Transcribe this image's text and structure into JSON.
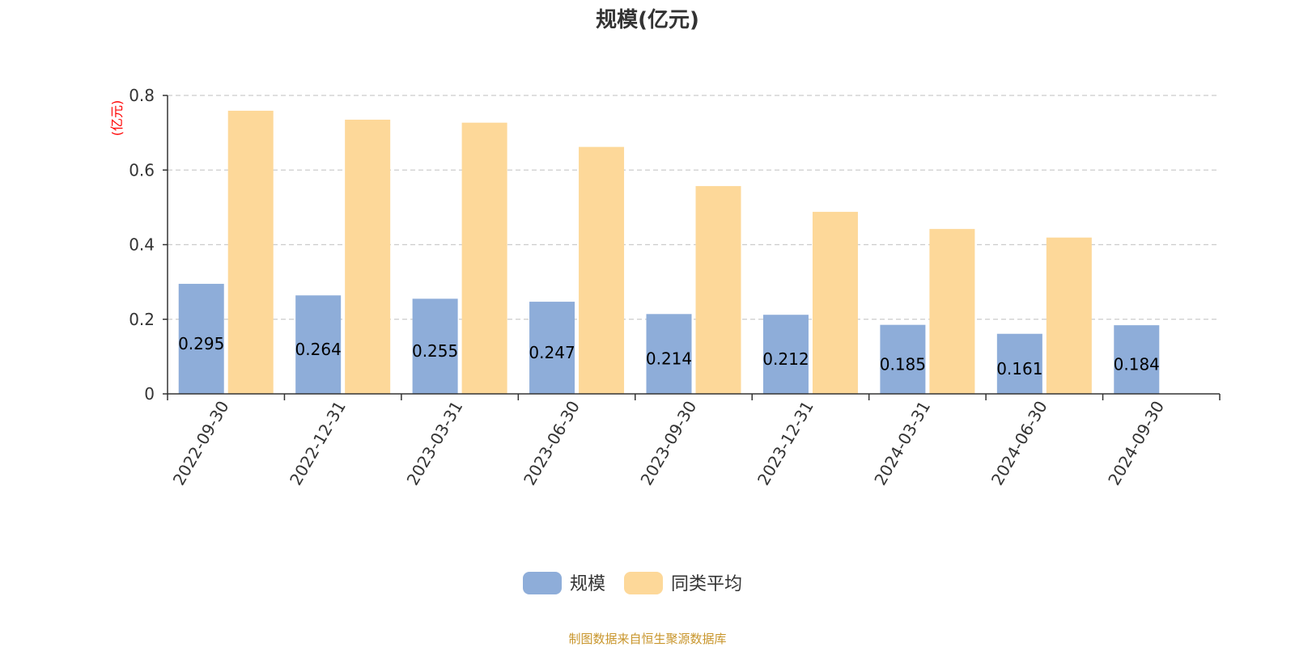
{
  "chart_data": {
    "type": "bar",
    "title": "规模(亿元)",
    "ylabel": "(亿元)",
    "xlabel": "",
    "categories": [
      "2022-09-30",
      "2022-12-31",
      "2023-03-31",
      "2023-06-30",
      "2023-09-30",
      "2023-12-31",
      "2024-03-31",
      "2024-06-30",
      "2024-09-30"
    ],
    "series": [
      {
        "name": "规模",
        "color": "#8eadd9",
        "values": [
          0.295,
          0.264,
          0.255,
          0.247,
          0.214,
          0.212,
          0.185,
          0.161,
          0.184
        ],
        "show_labels": true
      },
      {
        "name": "同类平均",
        "color": "#fdd899",
        "values": [
          0.759,
          0.735,
          0.727,
          0.662,
          0.557,
          0.488,
          0.442,
          0.419,
          null
        ],
        "show_labels": false
      }
    ],
    "ylim": [
      0,
      0.8
    ],
    "yticks": [
      "0",
      "0.2",
      "0.4",
      "0.6",
      "0.8"
    ],
    "grid": true,
    "legend_position": "bottom"
  },
  "footer": {
    "source": "制图数据来自恒生聚源数据库"
  }
}
